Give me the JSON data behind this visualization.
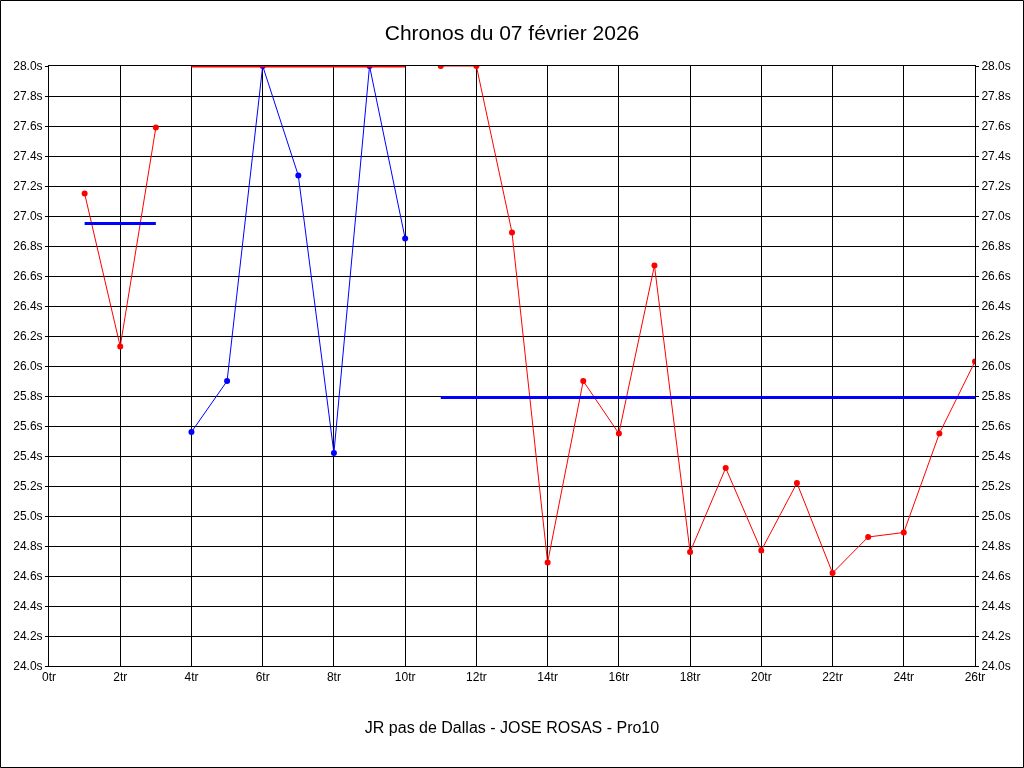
{
  "chart_data": {
    "type": "line",
    "title": "Chronos du 07 février 2026",
    "xlabel": "JR pas de Dallas - JOSE ROSAS - Pro10",
    "xlim": [
      0,
      26
    ],
    "xticks": [
      {
        "value": 0,
        "label": "0tr"
      },
      {
        "value": 2,
        "label": "2tr"
      },
      {
        "value": 4,
        "label": "4tr"
      },
      {
        "value": 6,
        "label": "6tr"
      },
      {
        "value": 8,
        "label": "8tr"
      },
      {
        "value": 10,
        "label": "10tr"
      },
      {
        "value": 12,
        "label": "12tr"
      },
      {
        "value": 14,
        "label": "14tr"
      },
      {
        "value": 16,
        "label": "16tr"
      },
      {
        "value": 18,
        "label": "18tr"
      },
      {
        "value": 20,
        "label": "20tr"
      },
      {
        "value": 22,
        "label": "22tr"
      },
      {
        "value": 24,
        "label": "24tr"
      },
      {
        "value": 26,
        "label": "26tr"
      }
    ],
    "ylim": [
      24.0,
      28.0
    ],
    "yticks": [
      {
        "value": 24.0,
        "label": "24.0s"
      },
      {
        "value": 24.2,
        "label": "24.2s"
      },
      {
        "value": 24.4,
        "label": "24.4s"
      },
      {
        "value": 24.6,
        "label": "24.6s"
      },
      {
        "value": 24.8,
        "label": "24.8s"
      },
      {
        "value": 25.0,
        "label": "25.0s"
      },
      {
        "value": 25.2,
        "label": "25.2s"
      },
      {
        "value": 25.4,
        "label": "25.4s"
      },
      {
        "value": 25.6,
        "label": "25.6s"
      },
      {
        "value": 25.8,
        "label": "25.8s"
      },
      {
        "value": 26.0,
        "label": "26.0s"
      },
      {
        "value": 26.2,
        "label": "26.2s"
      },
      {
        "value": 26.4,
        "label": "26.4s"
      },
      {
        "value": 26.6,
        "label": "26.6s"
      },
      {
        "value": 26.8,
        "label": "26.8s"
      },
      {
        "value": 27.0,
        "label": "27.0s"
      },
      {
        "value": 27.2,
        "label": "27.2s"
      },
      {
        "value": 27.4,
        "label": "27.4s"
      },
      {
        "value": 27.6,
        "label": "27.6s"
      },
      {
        "value": 27.8,
        "label": "27.8s"
      },
      {
        "value": 28.0,
        "label": "28.0s"
      }
    ],
    "y2lim": [
      24.0,
      28.0
    ],
    "y2ticks": [
      {
        "value": 24.0,
        "label": "24.0s"
      },
      {
        "value": 24.2,
        "label": "24.2s"
      },
      {
        "value": 24.4,
        "label": "24.4s"
      },
      {
        "value": 24.6,
        "label": "24.6s"
      },
      {
        "value": 24.8,
        "label": "24.8s"
      },
      {
        "value": 25.0,
        "label": "25.0s"
      },
      {
        "value": 25.2,
        "label": "25.2s"
      },
      {
        "value": 25.4,
        "label": "25.4s"
      },
      {
        "value": 25.6,
        "label": "25.6s"
      },
      {
        "value": 25.8,
        "label": "25.8s"
      },
      {
        "value": 26.0,
        "label": "26.0s"
      },
      {
        "value": 26.2,
        "label": "26.2s"
      },
      {
        "value": 26.4,
        "label": "26.4s"
      },
      {
        "value": 26.6,
        "label": "26.6s"
      },
      {
        "value": 26.8,
        "label": "26.8s"
      },
      {
        "value": 27.0,
        "label": "27.0s"
      },
      {
        "value": 27.2,
        "label": "27.2s"
      },
      {
        "value": 27.4,
        "label": "27.4s"
      },
      {
        "value": 27.6,
        "label": "27.6s"
      },
      {
        "value": 27.8,
        "label": "27.8s"
      },
      {
        "value": 28.0,
        "label": "28.0s"
      }
    ],
    "grid": true,
    "marker": "circle",
    "series": [
      {
        "color": "#ff0000",
        "x": [
          1,
          2,
          3
        ],
        "values": [
          27.15,
          26.13,
          27.59
        ]
      },
      {
        "color": "#0000ff",
        "marker": "none",
        "x": [
          1,
          3
        ],
        "values": [
          26.95,
          26.95
        ]
      },
      {
        "color": "#0000ff",
        "x": [
          4,
          5,
          6,
          7,
          8,
          9,
          10
        ],
        "values": [
          25.56,
          25.9,
          28.0,
          27.27,
          25.42,
          28.0,
          26.85
        ]
      },
      {
        "color": "#ff0000",
        "marker": "none",
        "x": [
          4,
          10
        ],
        "values": [
          28.0,
          28.0
        ]
      },
      {
        "color": "#ff0000",
        "x": [
          11,
          12,
          13,
          14,
          15,
          16,
          17,
          18,
          19,
          20,
          21,
          22,
          23,
          24,
          25,
          26
        ],
        "values": [
          28.0,
          28.0,
          26.89,
          24.69,
          25.9,
          25.55,
          26.67,
          24.76,
          25.32,
          24.77,
          25.22,
          24.62,
          24.86,
          24.89,
          25.55,
          26.03
        ]
      },
      {
        "color": "#0000ff",
        "marker": "none",
        "x": [
          11,
          26
        ],
        "values": [
          25.79,
          25.79
        ]
      }
    ]
  }
}
